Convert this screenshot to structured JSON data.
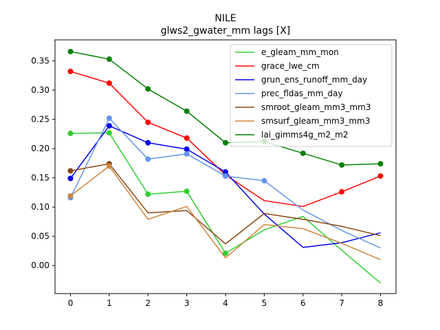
{
  "chart_data": {
    "type": "line",
    "title": "NILE",
    "subtitle": "glws2_gwater_mm lags [X]",
    "xlabel": "",
    "ylabel": "",
    "xlim": [
      -0.4,
      8.4
    ],
    "ylim": [
      -0.048,
      0.386
    ],
    "x_ticks": [
      0,
      1,
      2,
      3,
      4,
      5,
      6,
      7,
      8
    ],
    "y_ticks": [
      0.0,
      0.05,
      0.1,
      0.15,
      0.2,
      0.25,
      0.3,
      0.35
    ],
    "y_tick_labels": [
      "0.00",
      "0.05",
      "0.10",
      "0.15",
      "0.20",
      "0.25",
      "0.30",
      "0.35"
    ],
    "legend_position": "top-right",
    "grid": false,
    "x": [
      0,
      1,
      2,
      3,
      4,
      5,
      6,
      7,
      8
    ],
    "series": [
      {
        "name": "e_gleam_mm_mon",
        "color": "#32cd32",
        "values": [
          0.226,
          0.227,
          0.122,
          0.127,
          0.021,
          0.061,
          0.084,
          0.026,
          -0.03
        ],
        "markers": [
          true,
          true,
          true,
          true,
          true,
          false,
          false,
          false,
          false
        ]
      },
      {
        "name": "grace_lwe_cm",
        "color": "#ff0000",
        "values": [
          0.332,
          0.312,
          0.245,
          0.218,
          0.155,
          0.111,
          0.101,
          0.126,
          0.153
        ],
        "markers": [
          true,
          true,
          true,
          true,
          true,
          false,
          false,
          true,
          true
        ]
      },
      {
        "name": "grun_ens_runoff_mm_day",
        "color": "#0000ee",
        "values": [
          0.149,
          0.239,
          0.21,
          0.199,
          0.16,
          0.088,
          0.031,
          0.039,
          0.056
        ],
        "markers": [
          true,
          true,
          true,
          true,
          true,
          false,
          false,
          false,
          false
        ]
      },
      {
        "name": "prec_fldas_mm_day",
        "color": "#6495ed",
        "values": [
          0.116,
          0.252,
          0.182,
          0.191,
          0.153,
          0.145,
          0.095,
          0.06,
          0.03
        ],
        "markers": [
          true,
          true,
          true,
          true,
          true,
          true,
          false,
          false,
          false
        ]
      },
      {
        "name": "smroot_gleam_mm3_mm3",
        "color": "#8b4513",
        "values": [
          0.162,
          0.174,
          0.09,
          0.094,
          0.037,
          0.089,
          0.079,
          0.067,
          0.051
        ],
        "markers": [
          true,
          true,
          false,
          false,
          false,
          false,
          false,
          false,
          false
        ]
      },
      {
        "name": "smsurf_gleam_mm3_mm3",
        "color": "#cd853f",
        "values": [
          0.119,
          0.17,
          0.079,
          0.101,
          0.013,
          0.07,
          0.063,
          0.038,
          0.01
        ],
        "markers": [
          true,
          true,
          false,
          false,
          false,
          false,
          false,
          false,
          false
        ]
      },
      {
        "name": "lai_gimms4g_m2_m2",
        "color": "#008000",
        "values": [
          0.366,
          0.353,
          0.302,
          0.264,
          0.21,
          0.212,
          0.192,
          0.172,
          0.174
        ],
        "markers": [
          true,
          true,
          true,
          true,
          true,
          true,
          true,
          true,
          true
        ]
      }
    ]
  }
}
